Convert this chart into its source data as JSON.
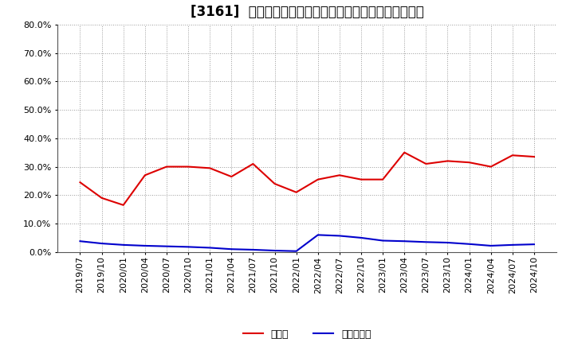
{
  "title": "[3161]  現預金、有利子負債の総資産に対する比率の推移",
  "x_labels": [
    "2019/07",
    "2019/10",
    "2020/01",
    "2020/04",
    "2020/07",
    "2020/10",
    "2021/01",
    "2021/04",
    "2021/07",
    "2021/10",
    "2022/01",
    "2022/04",
    "2022/07",
    "2022/10",
    "2023/01",
    "2023/04",
    "2023/07",
    "2023/10",
    "2024/01",
    "2024/04",
    "2024/07",
    "2024/10"
  ],
  "cash_values": [
    0.245,
    0.19,
    0.165,
    0.27,
    0.3,
    0.3,
    0.295,
    0.265,
    0.31,
    0.24,
    0.21,
    0.255,
    0.27,
    0.255,
    0.255,
    0.35,
    0.31,
    0.32,
    0.315,
    0.3,
    0.34,
    0.335
  ],
  "debt_values": [
    0.038,
    0.03,
    0.025,
    0.022,
    0.02,
    0.018,
    0.015,
    0.01,
    0.008,
    0.005,
    0.003,
    0.06,
    0.057,
    0.05,
    0.04,
    0.038,
    0.035,
    0.033,
    0.028,
    0.022,
    0.025,
    0.027
  ],
  "cash_color": "#dd0000",
  "debt_color": "#0000cc",
  "bg_color": "#ffffff",
  "plot_bg_color": "#ffffff",
  "grid_color": "#aaaaaa",
  "ylim": [
    0.0,
    0.8
  ],
  "yticks": [
    0.0,
    0.1,
    0.2,
    0.3,
    0.4,
    0.5,
    0.6,
    0.7,
    0.8
  ],
  "legend_cash": "現預金",
  "legend_debt": "有利子負債",
  "title_fontsize": 12,
  "legend_fontsize": 9,
  "tick_fontsize": 8
}
